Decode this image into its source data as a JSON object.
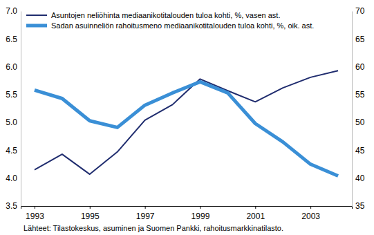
{
  "chart_data": {
    "type": "line",
    "source": "Lähteet: Tilastokeskus, asuminen ja Suomen Pankki, rahoitusmarkkinatilasto.",
    "x": [
      1993,
      1994,
      1995,
      1996,
      1997,
      1998,
      1999,
      2000,
      2001,
      2002,
      2003,
      2004
    ],
    "xlim": [
      1992.5,
      2004.5
    ],
    "xticks": [
      1993,
      1995,
      1997,
      1999,
      2001,
      2003
    ],
    "ylim": [
      3.5,
      7.0
    ],
    "yticks": [
      3.5,
      {
        "value": 4.0,
        "label": "4.0"
      },
      4.5,
      {
        "value": 5.0,
        "label": "5.0"
      },
      5.5,
      {
        "value": 6.0,
        "label": "6.0"
      },
      6.5,
      {
        "value": 7.0,
        "label": "7.0"
      }
    ],
    "y2lim": [
      35,
      70
    ],
    "y2ticks": [
      35,
      40,
      45,
      50,
      55,
      60,
      65,
      70
    ],
    "grid": false,
    "legend": "upper left",
    "series": [
      {
        "name": "Asuntojen neliöhinta mediaanikotitalouden tuloa kohti, %, vasen ast.",
        "color": "#1f2c6e",
        "axis": "y",
        "values": [
          4.15,
          4.43,
          4.07,
          4.47,
          5.04,
          5.32,
          5.78,
          5.57,
          5.37,
          5.62,
          5.81,
          5.93
        ]
      },
      {
        "name": "Sadan asuinneliön rahoitusmeno mediaanikotitalouden tuloa kohti, %, oik. ast.",
        "color": "#3a8fd6",
        "axis": "y2",
        "values": [
          55.8,
          54.3,
          50.3,
          49.1,
          53.1,
          55.3,
          57.3,
          55.3,
          49.8,
          46.5,
          42.5,
          40.4
        ]
      }
    ]
  }
}
